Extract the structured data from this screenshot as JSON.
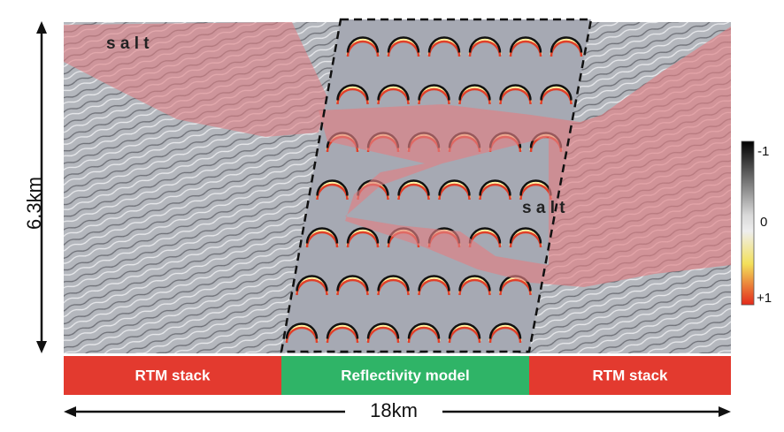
{
  "labels": {
    "salt_left": "s a l t",
    "salt_right": "s a l t"
  },
  "panels": [
    {
      "label": "RTM stack"
    },
    {
      "label": "Reflectivity model"
    },
    {
      "label": "RTM stack"
    }
  ],
  "scale": {
    "depth": "6.3km",
    "width": "18km"
  },
  "colorbar": {
    "top": "-1",
    "middle": "0",
    "bottom": "+1"
  }
}
